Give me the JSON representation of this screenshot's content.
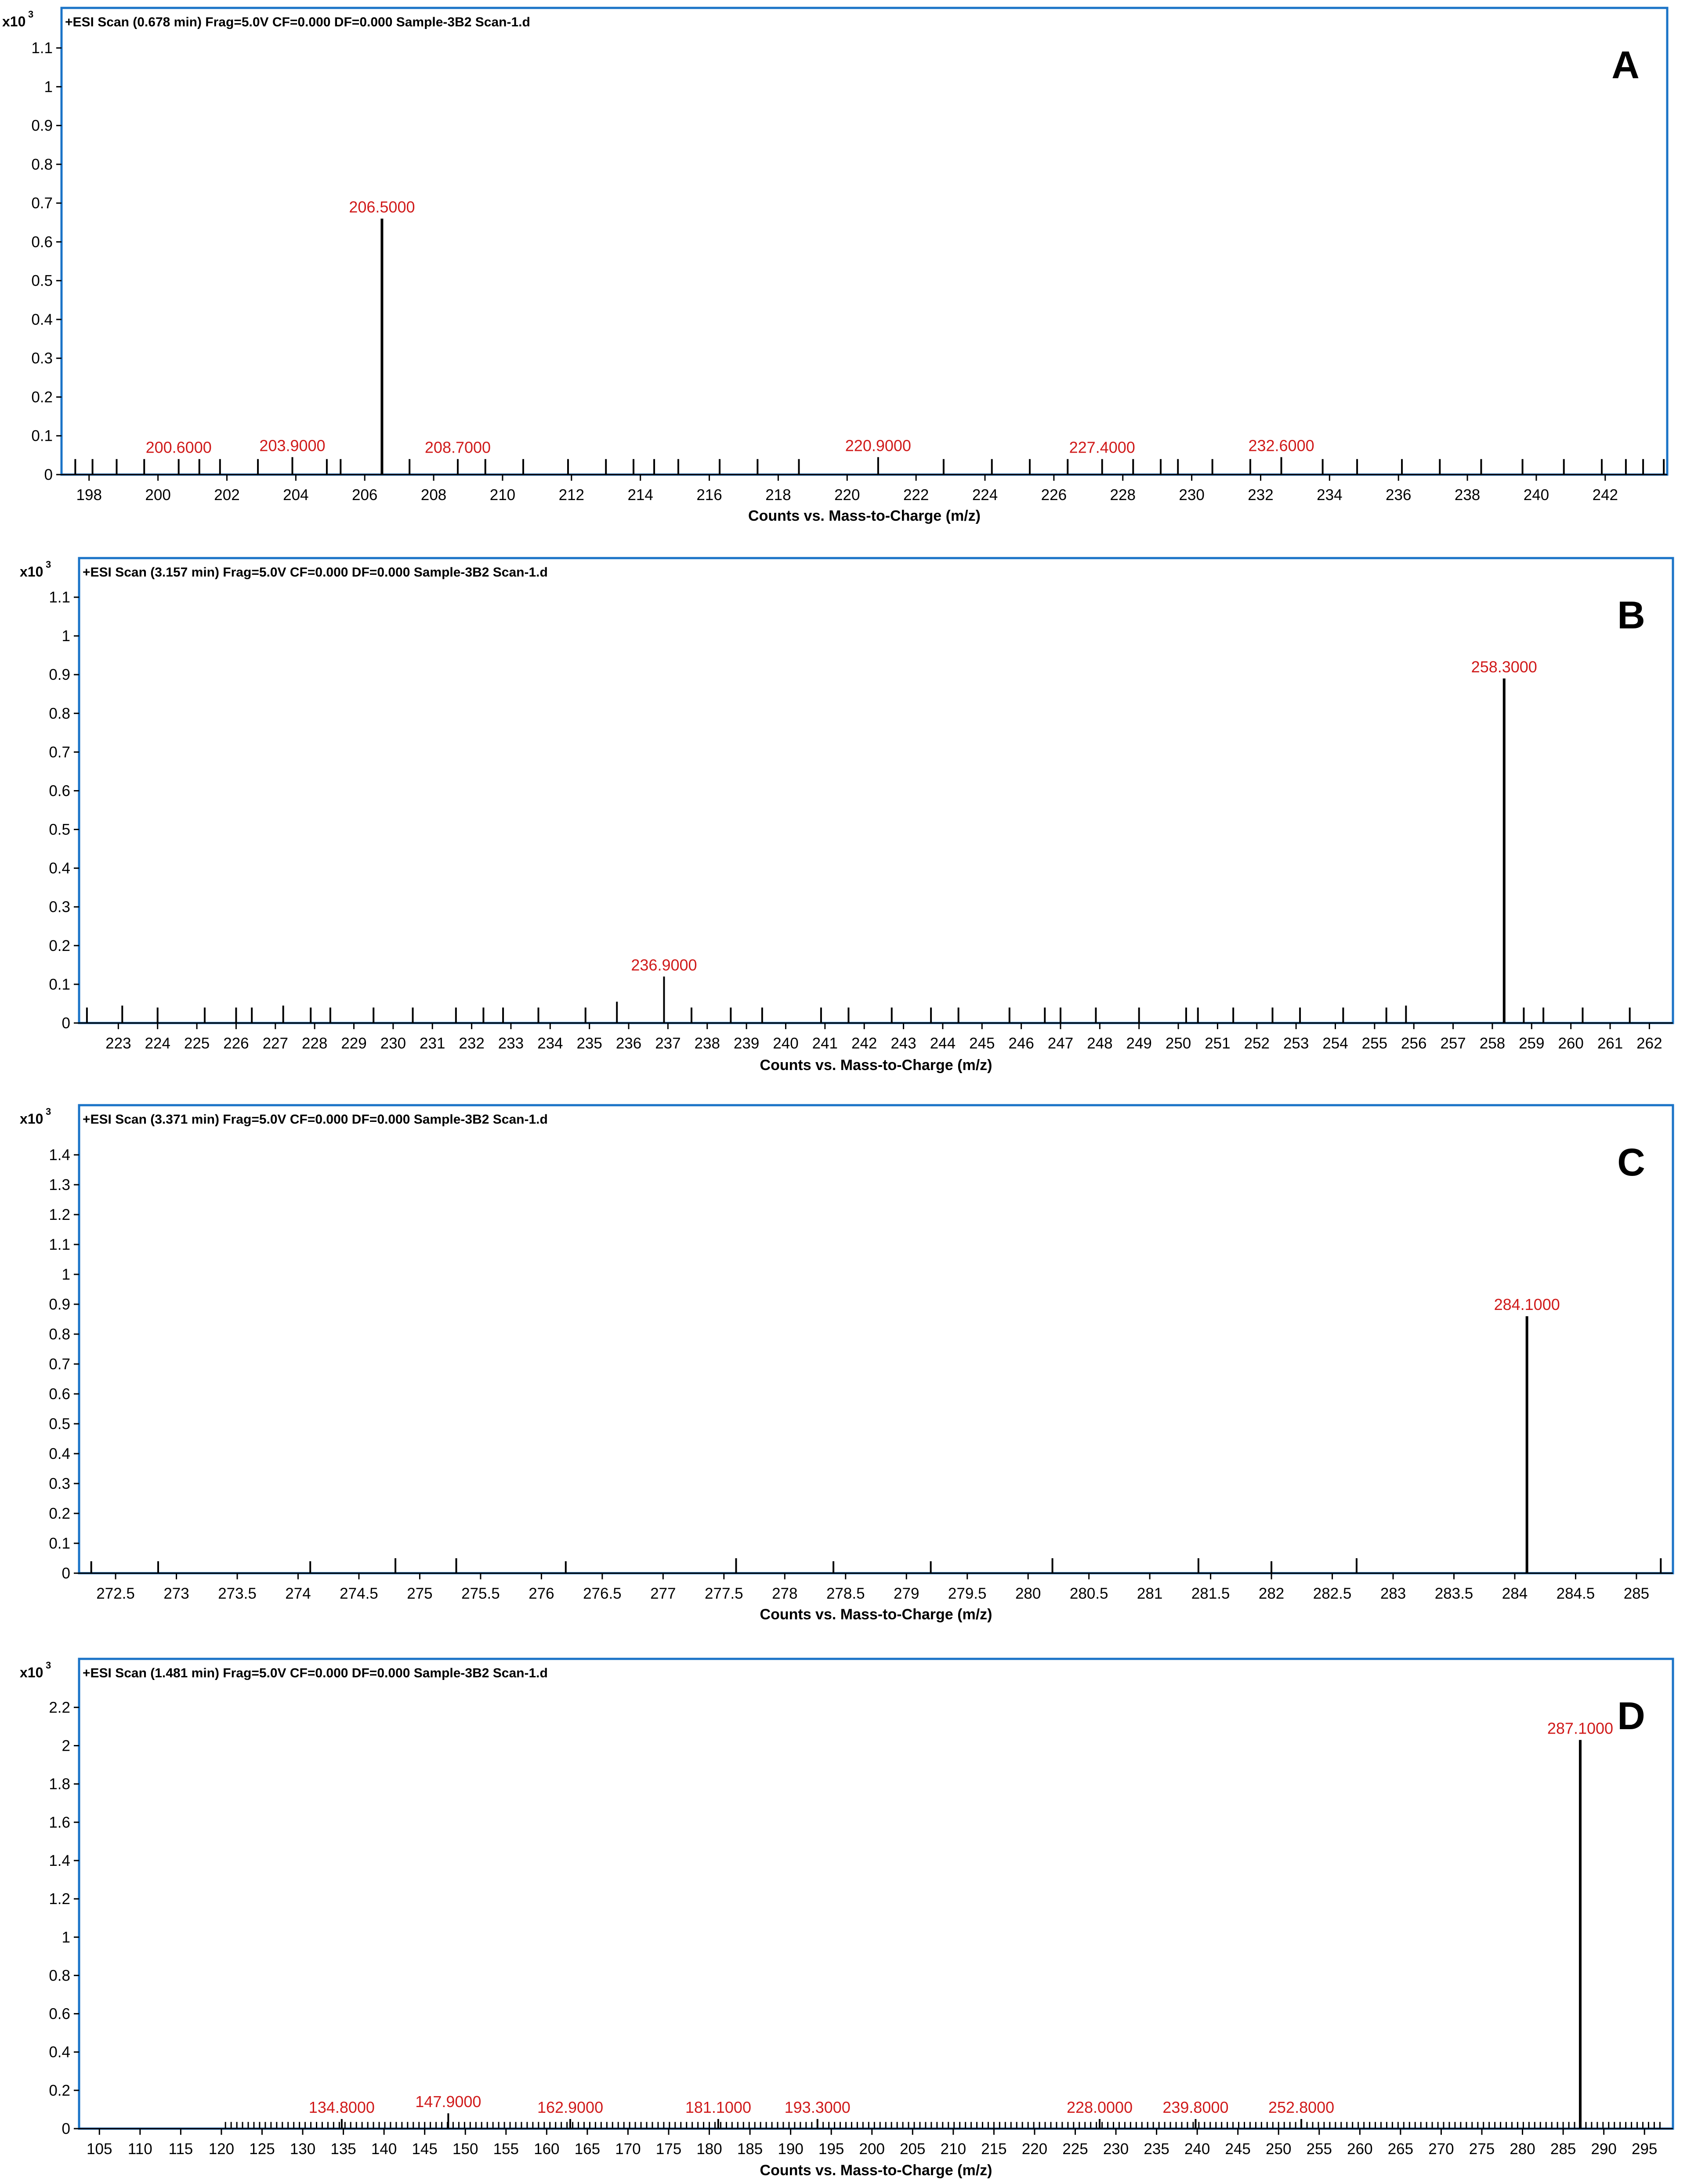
{
  "colors": {
    "frame": "#1a73c7",
    "stick": "#000000",
    "peak_label": "#d01a1a"
  },
  "chart_data": [
    {
      "type": "bar",
      "panel": "A",
      "header": "+ESI Scan (0.678 min) Frag=5.0V CF=0.000 DF=0.000 Sample-3B2 Scan-1.d",
      "ylabel": "x10",
      "ylabel_exp": "3",
      "xlabel": "Counts vs. Mass-to-Charge (m/z)",
      "xlim": [
        197.2,
        243.8
      ],
      "ylim": [
        0,
        1.15
      ],
      "xticks": [
        198,
        200,
        202,
        204,
        206,
        208,
        210,
        212,
        214,
        216,
        218,
        220,
        222,
        224,
        226,
        228,
        230,
        232,
        234,
        236,
        238,
        240,
        242
      ],
      "yticks": [
        0,
        0.1,
        0.2,
        0.3,
        0.4,
        0.5,
        0.6,
        0.7,
        0.8,
        0.9,
        1,
        1.1
      ],
      "ytick_labels": [
        "0",
        "0.1",
        "0.2",
        "0.3",
        "0.4",
        "0.5",
        "0.6",
        "0.7",
        "0.8",
        "0.9",
        "1",
        "1.1"
      ],
      "peaks": [
        {
          "mz": 197.6,
          "value": 0.04
        },
        {
          "mz": 198.1,
          "value": 0.04
        },
        {
          "mz": 198.8,
          "value": 0.04
        },
        {
          "mz": 199.6,
          "value": 0.04
        },
        {
          "mz": 200.6,
          "value": 0.04,
          "label": "200.6000"
        },
        {
          "mz": 201.2,
          "value": 0.04
        },
        {
          "mz": 201.8,
          "value": 0.04
        },
        {
          "mz": 202.9,
          "value": 0.04
        },
        {
          "mz": 203.9,
          "value": 0.045,
          "label": "203.9000"
        },
        {
          "mz": 204.9,
          "value": 0.04
        },
        {
          "mz": 205.3,
          "value": 0.04
        },
        {
          "mz": 206.5,
          "value": 0.66,
          "label": "206.5000"
        },
        {
          "mz": 207.3,
          "value": 0.04
        },
        {
          "mz": 208.7,
          "value": 0.04,
          "label": "208.7000"
        },
        {
          "mz": 209.5,
          "value": 0.04
        },
        {
          "mz": 210.6,
          "value": 0.04
        },
        {
          "mz": 211.9,
          "value": 0.04
        },
        {
          "mz": 213.0,
          "value": 0.04
        },
        {
          "mz": 213.8,
          "value": 0.04
        },
        {
          "mz": 214.4,
          "value": 0.04
        },
        {
          "mz": 215.1,
          "value": 0.04
        },
        {
          "mz": 216.3,
          "value": 0.04
        },
        {
          "mz": 217.4,
          "value": 0.04
        },
        {
          "mz": 218.6,
          "value": 0.04
        },
        {
          "mz": 220.9,
          "value": 0.045,
          "label": "220.9000"
        },
        {
          "mz": 222.8,
          "value": 0.04
        },
        {
          "mz": 224.2,
          "value": 0.04
        },
        {
          "mz": 225.3,
          "value": 0.04
        },
        {
          "mz": 226.4,
          "value": 0.04
        },
        {
          "mz": 227.4,
          "value": 0.04,
          "label": "227.4000"
        },
        {
          "mz": 228.3,
          "value": 0.04
        },
        {
          "mz": 229.1,
          "value": 0.04
        },
        {
          "mz": 229.6,
          "value": 0.04
        },
        {
          "mz": 230.6,
          "value": 0.04
        },
        {
          "mz": 231.7,
          "value": 0.04
        },
        {
          "mz": 232.6,
          "value": 0.045,
          "label": "232.6000"
        },
        {
          "mz": 233.8,
          "value": 0.04
        },
        {
          "mz": 234.8,
          "value": 0.04
        },
        {
          "mz": 236.1,
          "value": 0.04
        },
        {
          "mz": 237.2,
          "value": 0.04
        },
        {
          "mz": 238.4,
          "value": 0.04
        },
        {
          "mz": 239.6,
          "value": 0.04
        },
        {
          "mz": 240.8,
          "value": 0.04
        },
        {
          "mz": 241.9,
          "value": 0.04
        },
        {
          "mz": 242.6,
          "value": 0.04
        },
        {
          "mz": 243.1,
          "value": 0.04
        },
        {
          "mz": 243.7,
          "value": 0.04
        }
      ]
    },
    {
      "type": "bar",
      "panel": "B",
      "header": "+ESI Scan (3.157 min) Frag=5.0V CF=0.000 DF=0.000 Sample-3B2 Scan-1.d",
      "ylabel": "x10",
      "ylabel_exp": "3",
      "xlabel": "Counts vs. Mass-to-Charge (m/z)",
      "xlim": [
        222.0,
        262.6
      ],
      "ylim": [
        0,
        1.15
      ],
      "xticks": [
        223,
        224,
        225,
        226,
        227,
        228,
        229,
        230,
        231,
        232,
        233,
        234,
        235,
        236,
        237,
        238,
        239,
        240,
        241,
        242,
        243,
        244,
        245,
        246,
        247,
        248,
        249,
        250,
        251,
        252,
        253,
        254,
        255,
        256,
        257,
        258,
        259,
        260,
        261,
        262
      ],
      "yticks": [
        0,
        0.1,
        0.2,
        0.3,
        0.4,
        0.5,
        0.6,
        0.7,
        0.8,
        0.9,
        1,
        1.1
      ],
      "ytick_labels": [
        "0",
        "0.1",
        "0.2",
        "0.3",
        "0.4",
        "0.5",
        "0.6",
        "0.7",
        "0.8",
        "0.9",
        "1",
        "1.1"
      ],
      "peaks": [
        {
          "mz": 222.2,
          "value": 0.04
        },
        {
          "mz": 223.1,
          "value": 0.045
        },
        {
          "mz": 224.0,
          "value": 0.04
        },
        {
          "mz": 225.2,
          "value": 0.04
        },
        {
          "mz": 226.0,
          "value": 0.04
        },
        {
          "mz": 226.4,
          "value": 0.04
        },
        {
          "mz": 227.2,
          "value": 0.045
        },
        {
          "mz": 227.9,
          "value": 0.04
        },
        {
          "mz": 228.4,
          "value": 0.04
        },
        {
          "mz": 229.5,
          "value": 0.04
        },
        {
          "mz": 230.5,
          "value": 0.04
        },
        {
          "mz": 231.6,
          "value": 0.04
        },
        {
          "mz": 232.3,
          "value": 0.04
        },
        {
          "mz": 232.8,
          "value": 0.04
        },
        {
          "mz": 233.7,
          "value": 0.04
        },
        {
          "mz": 234.9,
          "value": 0.04
        },
        {
          "mz": 235.7,
          "value": 0.055
        },
        {
          "mz": 236.9,
          "value": 0.12,
          "label": "236.9000"
        },
        {
          "mz": 237.6,
          "value": 0.04
        },
        {
          "mz": 238.6,
          "value": 0.04
        },
        {
          "mz": 239.4,
          "value": 0.04
        },
        {
          "mz": 240.9,
          "value": 0.04
        },
        {
          "mz": 241.6,
          "value": 0.04
        },
        {
          "mz": 242.7,
          "value": 0.04
        },
        {
          "mz": 243.7,
          "value": 0.04
        },
        {
          "mz": 244.4,
          "value": 0.04
        },
        {
          "mz": 245.7,
          "value": 0.04
        },
        {
          "mz": 246.6,
          "value": 0.04
        },
        {
          "mz": 247.0,
          "value": 0.04
        },
        {
          "mz": 247.9,
          "value": 0.04
        },
        {
          "mz": 249.0,
          "value": 0.04
        },
        {
          "mz": 250.2,
          "value": 0.04
        },
        {
          "mz": 250.5,
          "value": 0.04
        },
        {
          "mz": 251.4,
          "value": 0.04
        },
        {
          "mz": 252.4,
          "value": 0.04
        },
        {
          "mz": 253.1,
          "value": 0.04
        },
        {
          "mz": 254.2,
          "value": 0.04
        },
        {
          "mz": 255.3,
          "value": 0.04
        },
        {
          "mz": 255.8,
          "value": 0.045
        },
        {
          "mz": 258.3,
          "value": 0.89,
          "label": "258.3000"
        },
        {
          "mz": 258.8,
          "value": 0.04
        },
        {
          "mz": 259.3,
          "value": 0.04
        },
        {
          "mz": 260.3,
          "value": 0.04
        },
        {
          "mz": 261.5,
          "value": 0.04
        }
      ]
    },
    {
      "type": "bar",
      "panel": "C",
      "header": "+ESI Scan (3.371 min) Frag=5.0V CF=0.000 DF=0.000 Sample-3B2 Scan-1.d",
      "ylabel": "x10",
      "ylabel_exp": "3",
      "xlabel": "Counts vs. Mass-to-Charge (m/z)",
      "xlim": [
        272.2,
        285.3
      ],
      "ylim": [
        0,
        1.5
      ],
      "xticks": [
        272.5,
        273,
        273.5,
        274,
        274.5,
        275,
        275.5,
        276,
        276.5,
        277,
        277.5,
        278,
        278.5,
        279,
        279.5,
        280,
        280.5,
        281,
        281.5,
        282,
        282.5,
        283,
        283.5,
        284,
        284.5,
        285
      ],
      "yticks": [
        0,
        0.1,
        0.2,
        0.3,
        0.4,
        0.5,
        0.6,
        0.7,
        0.8,
        0.9,
        1,
        1.1,
        1.2,
        1.3,
        1.4
      ],
      "ytick_labels": [
        "0",
        "0.1",
        "0.2",
        "0.3",
        "0.4",
        "0.5",
        "0.6",
        "0.7",
        "0.8",
        "0.9",
        "1",
        "1.1",
        "1.2",
        "1.3",
        "1.4"
      ],
      "peaks": [
        {
          "mz": 272.3,
          "value": 0.04
        },
        {
          "mz": 272.85,
          "value": 0.04
        },
        {
          "mz": 274.1,
          "value": 0.04
        },
        {
          "mz": 274.8,
          "value": 0.05
        },
        {
          "mz": 275.3,
          "value": 0.05
        },
        {
          "mz": 276.2,
          "value": 0.04
        },
        {
          "mz": 277.6,
          "value": 0.05
        },
        {
          "mz": 278.4,
          "value": 0.04
        },
        {
          "mz": 279.2,
          "value": 0.04
        },
        {
          "mz": 280.2,
          "value": 0.05
        },
        {
          "mz": 281.4,
          "value": 0.05
        },
        {
          "mz": 282.0,
          "value": 0.04
        },
        {
          "mz": 282.7,
          "value": 0.05
        },
        {
          "mz": 284.1,
          "value": 0.86,
          "label": "284.1000"
        },
        {
          "mz": 285.2,
          "value": 0.05
        }
      ]
    },
    {
      "type": "bar",
      "panel": "D",
      "header": "+ESI Scan (1.481 min) Frag=5.0V CF=0.000 DF=0.000 Sample-3B2 Scan-1.d",
      "ylabel": "x10",
      "ylabel_exp": "3",
      "xlabel": "Counts vs. Mass-to-Charge (m/z)",
      "xlim": [
        102.5,
        298.5
      ],
      "ylim": [
        0,
        2.35
      ],
      "xticks": [
        105,
        110,
        115,
        120,
        125,
        130,
        135,
        140,
        145,
        150,
        155,
        160,
        165,
        170,
        175,
        180,
        185,
        190,
        195,
        200,
        205,
        210,
        215,
        220,
        225,
        230,
        235,
        240,
        245,
        250,
        255,
        260,
        265,
        270,
        275,
        280,
        285,
        290,
        295
      ],
      "yticks": [
        0,
        0.2,
        0.4,
        0.6,
        0.8,
        1,
        1.2,
        1.4,
        1.6,
        1.8,
        2,
        2.2
      ],
      "ytick_labels": [
        "0",
        "0.2",
        "0.4",
        "0.6",
        "0.8",
        "1",
        "1.2",
        "1.4",
        "1.6",
        "1.8",
        "2",
        "2.2"
      ],
      "noise": {
        "from": 120.5,
        "to": 297.5,
        "step": 0.7,
        "value": 0.035
      },
      "peaks": [
        {
          "mz": 134.8,
          "value": 0.05,
          "label": "134.8000"
        },
        {
          "mz": 147.9,
          "value": 0.08,
          "label": "147.9000"
        },
        {
          "mz": 162.9,
          "value": 0.05,
          "label": "162.9000"
        },
        {
          "mz": 181.1,
          "value": 0.05,
          "label": "181.1000"
        },
        {
          "mz": 193.3,
          "value": 0.05,
          "label": "193.3000"
        },
        {
          "mz": 228.0,
          "value": 0.05,
          "label": "228.0000"
        },
        {
          "mz": 239.8,
          "value": 0.05,
          "label": "239.8000"
        },
        {
          "mz": 252.8,
          "value": 0.05,
          "label": "252.8000"
        },
        {
          "mz": 287.1,
          "value": 2.03,
          "label": "287.1000"
        }
      ]
    }
  ]
}
